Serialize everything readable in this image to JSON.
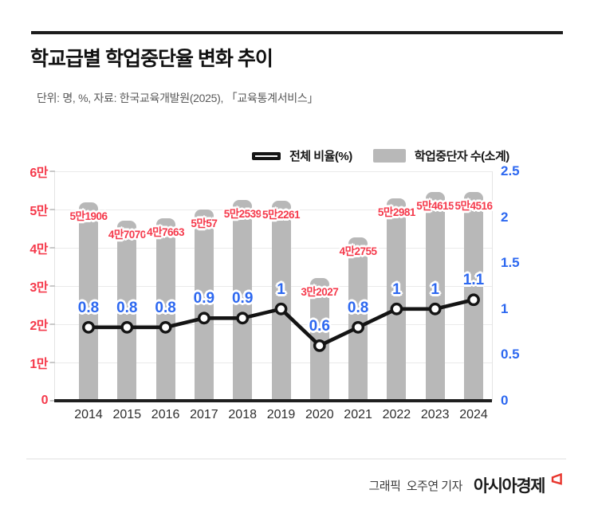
{
  "header": {
    "title": "학교급별 학업중단율 변화 추이",
    "subtitle": "단위: 명, %, 자료: 한국교육개발원(2025), 「교육통계서비스」"
  },
  "legend": {
    "line_label": "전체 비율(%)",
    "bar_label": "학업중단자 수(소계)"
  },
  "chart_data": {
    "type": "bar+line",
    "categories": [
      "2014",
      "2015",
      "2016",
      "2017",
      "2018",
      "2019",
      "2020",
      "2021",
      "2022",
      "2023",
      "2024"
    ],
    "series": [
      {
        "name": "학업중단자 수(소계)",
        "type": "bar",
        "axis": "left",
        "values": [
          51906,
          47070,
          47663,
          50057,
          52539,
          52261,
          32027,
          42755,
          52981,
          54615,
          54516
        ],
        "labels": [
          "5만1906",
          "4만7070",
          "4만7663",
          "5만57",
          "5만2539",
          "5만2261",
          "3만2027",
          "4만2755",
          "5만2981",
          "5만4615",
          "5만4516"
        ]
      },
      {
        "name": "전체 비율(%)",
        "type": "line",
        "axis": "right",
        "values": [
          0.8,
          0.8,
          0.8,
          0.9,
          0.9,
          1,
          0.6,
          0.8,
          1,
          1,
          1.1
        ],
        "labels": [
          "0.8",
          "0.8",
          "0.8",
          "0.9",
          "0.9",
          "1",
          "0.6",
          "0.8",
          "1",
          "1",
          "1.1"
        ]
      }
    ],
    "left_axis": {
      "ticks": [
        "0",
        "1만",
        "2만",
        "3만",
        "4만",
        "5만",
        "6만"
      ],
      "range": [
        0,
        60000
      ]
    },
    "right_axis": {
      "ticks": [
        "0",
        "0.5",
        "1",
        "1.5",
        "2",
        "2.5"
      ],
      "range": [
        0,
        2.5
      ]
    },
    "colors": {
      "bar": "#b8b8b8",
      "line": "#141414",
      "marker_fill": "#ffffff",
      "left_axis_labels": "#f5394b",
      "right_axis_labels": "#2d68f0"
    },
    "grid": true,
    "legend_position": "top"
  },
  "footer": {
    "credit": "그래픽  오주연 기자",
    "brand": "아시아경제"
  }
}
